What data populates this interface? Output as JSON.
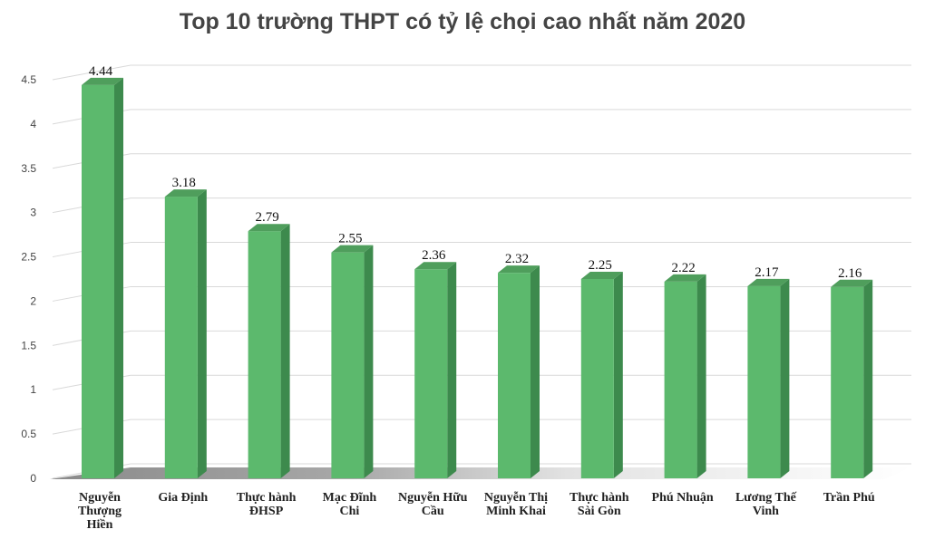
{
  "chart_data": {
    "type": "bar",
    "title": "Top 10 trường THPT có tỷ lệ chọi cao nhất năm 2020",
    "categories": [
      [
        "Nguyễn",
        "Thượng",
        "Hiền"
      ],
      [
        "Gia Định"
      ],
      [
        "Thực hành",
        "ĐHSP"
      ],
      [
        "Mạc Đĩnh",
        "Chi"
      ],
      [
        "Nguyễn Hữu",
        "Cầu"
      ],
      [
        "Nguyễn Thị",
        "Minh Khai"
      ],
      [
        "Thực hành",
        "Sài Gòn"
      ],
      [
        "Phú Nhuận"
      ],
      [
        "Lương Thế",
        "Vinh"
      ],
      [
        "Trần Phú"
      ]
    ],
    "values": [
      4.44,
      3.18,
      2.79,
      2.55,
      2.36,
      2.32,
      2.25,
      2.22,
      2.17,
      2.16
    ],
    "value_labels": [
      "4.44",
      "3.18",
      "2.79",
      "2.55",
      "2.36",
      "2.32",
      "2.25",
      "2.22",
      "2.17",
      "2.16"
    ],
    "yticks": [
      "0",
      "0.5",
      "1",
      "1.5",
      "2",
      "2.5",
      "3",
      "3.5",
      "4",
      "4.5"
    ],
    "ylim": [
      0,
      4.5
    ],
    "grid": true,
    "style": "3d-column",
    "colors": {
      "bar_front": "#5cb96d",
      "bar_side": "#3d8a4d",
      "bar_top": "#4f9e5c",
      "grid": "#d9d9d9",
      "title": "#444444",
      "floor": "#9a9a9a"
    }
  }
}
